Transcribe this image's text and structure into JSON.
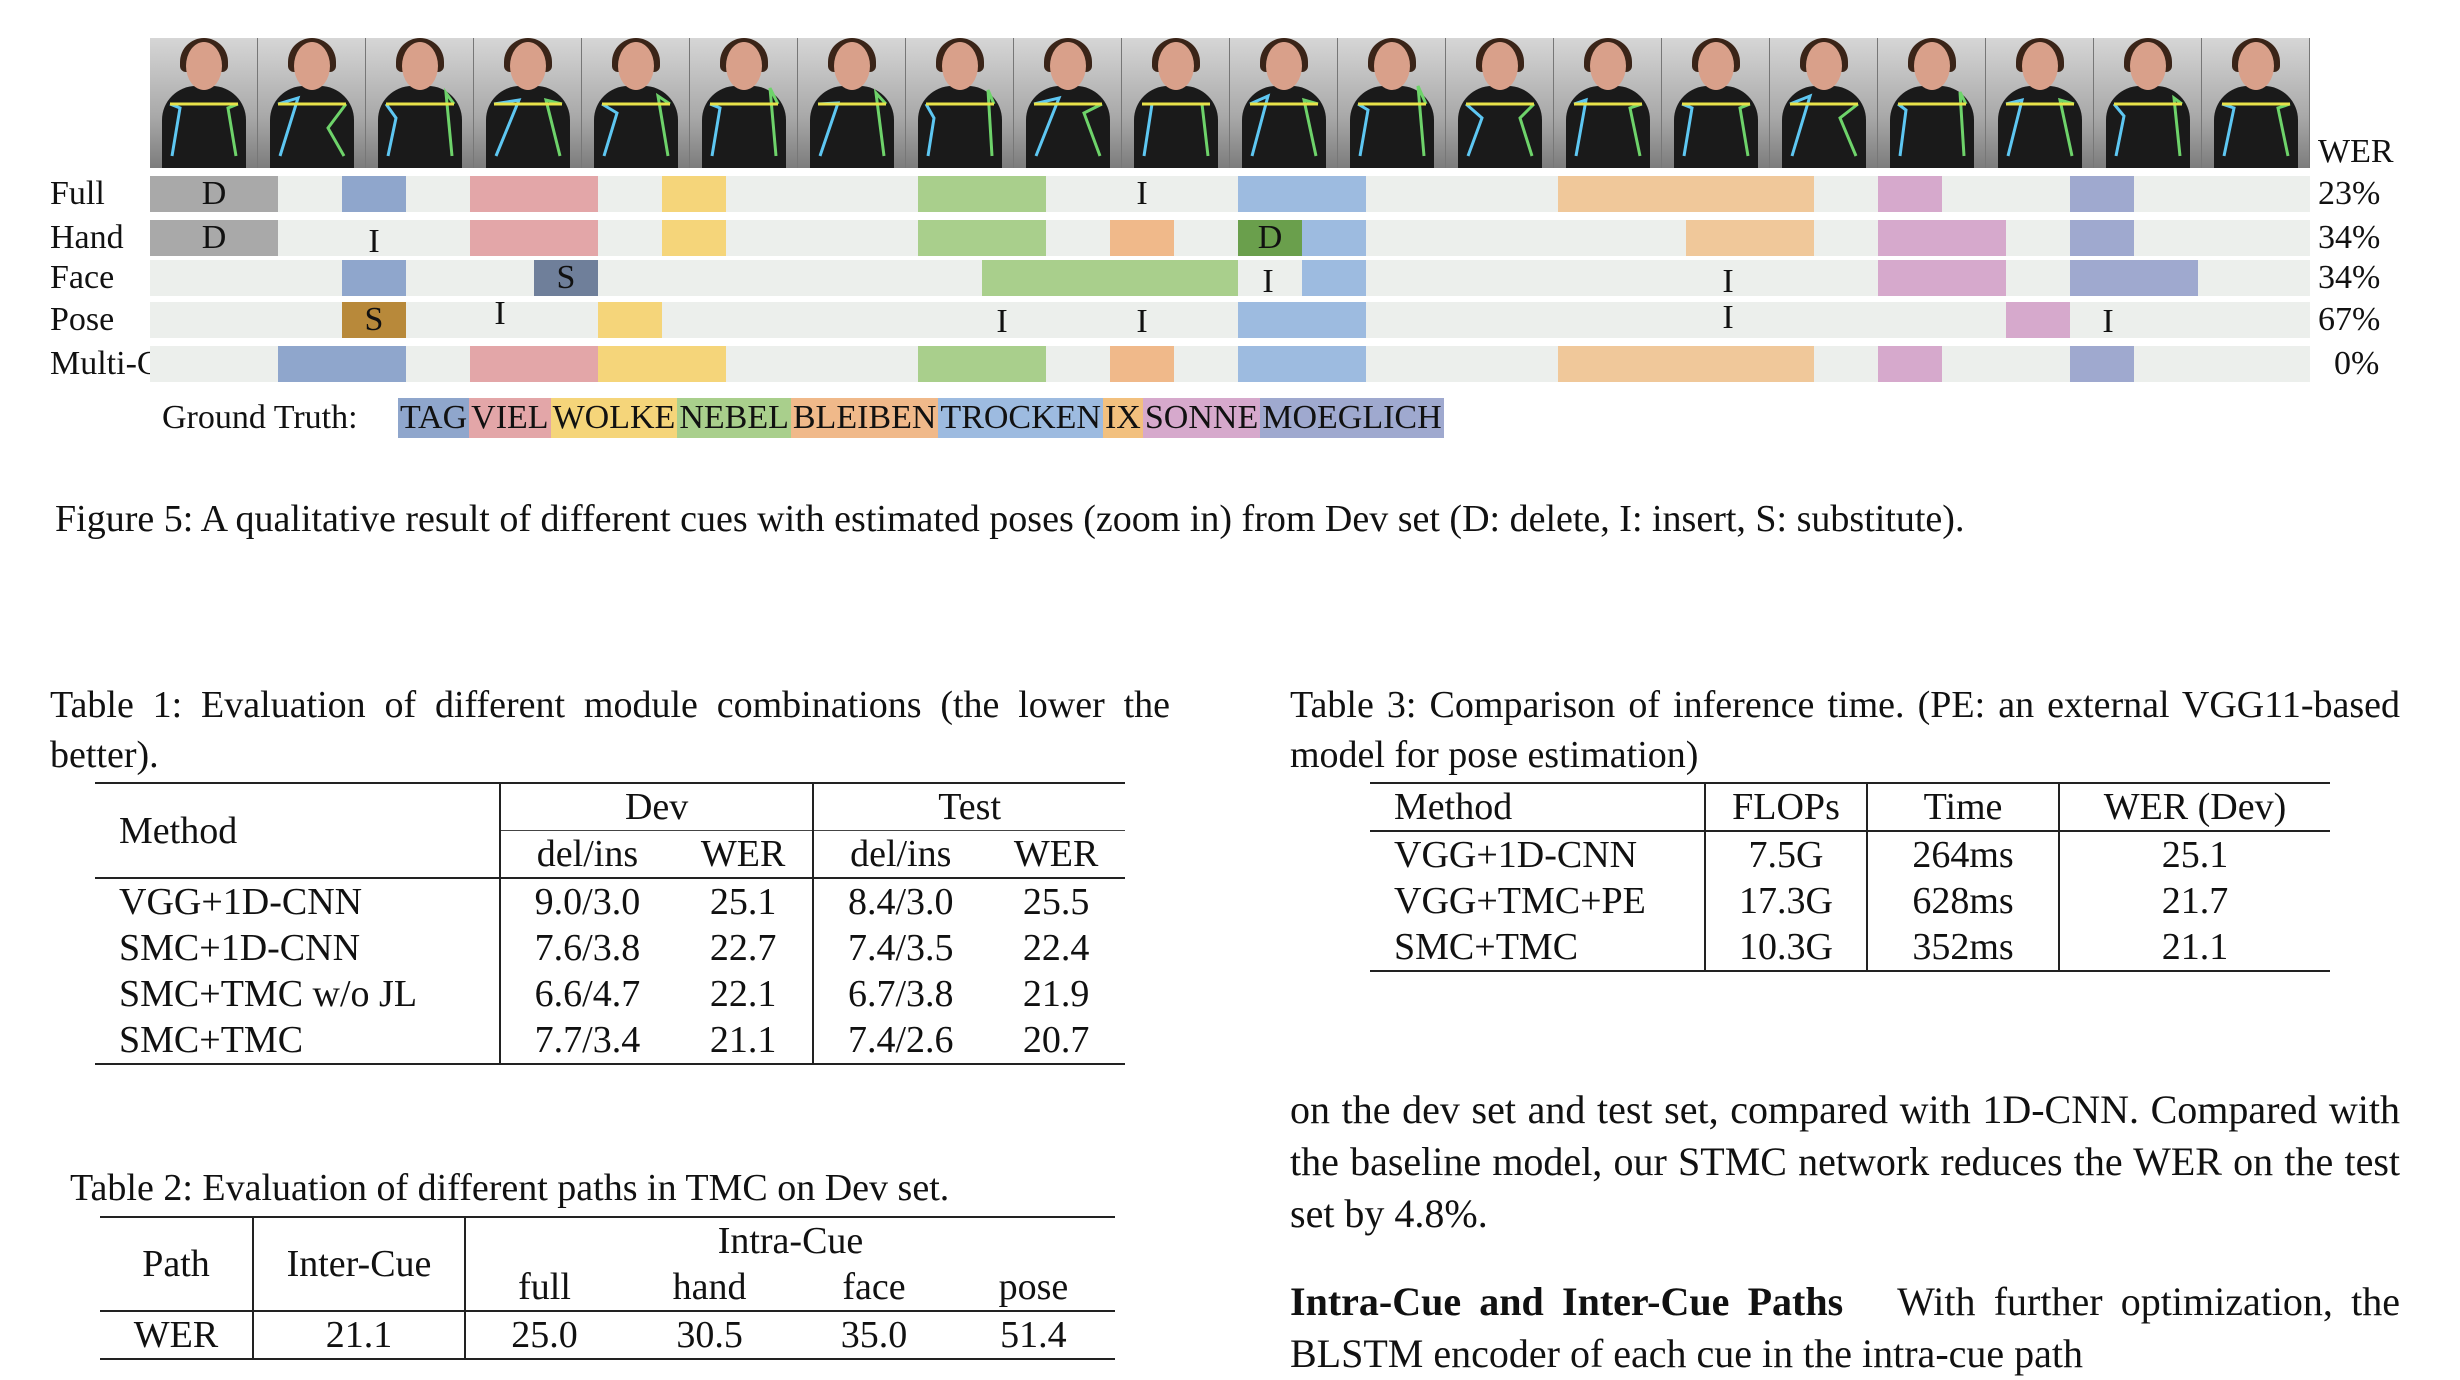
{
  "figure": {
    "wer_header": "WER",
    "rows": [
      {
        "label": "Full",
        "wer": "23%",
        "marks": [
          "D",
          "I"
        ]
      },
      {
        "label": "Hand",
        "wer": "34%",
        "marks": [
          "D",
          "I",
          "D"
        ]
      },
      {
        "label": "Face",
        "wer": "34%",
        "marks": [
          "S",
          "I",
          "I"
        ]
      },
      {
        "label": "Pose",
        "wer": "67%",
        "marks": [
          "S",
          "I",
          "I",
          "I",
          "I",
          "I"
        ]
      },
      {
        "label": "Multi-Cue",
        "wer": "0%",
        "marks": []
      }
    ],
    "ground_truth_label": "Ground Truth:",
    "ground_truth": [
      "TAG",
      "VIEL",
      "WOLKE",
      "NEBEL",
      "BLEIBEN",
      "TROCKEN",
      "IX",
      "SONNE",
      "MOEGLICH"
    ],
    "gloss_colors": {
      "TAG": "#8fa6cc",
      "VIEL": "#e3a6a8",
      "WOLKE": "#f5d57a",
      "NEBEL": "#a9cf8c",
      "BLEIBEN": "#f0b98a",
      "TROCKEN": "#9dbbe0",
      "IX": "#f2c07e",
      "SONNE": "#d6a9cc",
      "MOEGLICH": "#9fa9cf"
    },
    "caption": "Figure 5: A qualitative result of different cues with estimated poses (zoom in) from Dev set (D: delete, I: insert, S: substitute)."
  },
  "table1": {
    "caption": "Table 1: Evaluation of different module combinations (the lower the better).",
    "method_header": "Method",
    "dev_header": "Dev",
    "test_header": "Test",
    "sub_headers": [
      "del/ins",
      "WER",
      "del/ins",
      "WER"
    ],
    "rows": [
      [
        "VGG+1D-CNN",
        "9.0/3.0",
        "25.1",
        "8.4/3.0",
        "25.5"
      ],
      [
        "SMC+1D-CNN",
        "7.6/3.8",
        "22.7",
        "7.4/3.5",
        "22.4"
      ],
      [
        "SMC+TMC w/o JL",
        "6.6/4.7",
        "22.1",
        "6.7/3.8",
        "21.9"
      ],
      [
        "SMC+TMC",
        "7.7/3.4",
        "21.1",
        "7.4/2.6",
        "20.7"
      ]
    ]
  },
  "table2": {
    "caption": "Table 2: Evaluation of different paths in TMC on Dev set.",
    "path_header": "Path",
    "inter_header": "Inter-Cue",
    "intra_header": "Intra-Cue",
    "sub_headers": [
      "full",
      "hand",
      "face",
      "pose"
    ],
    "row": [
      "WER",
      "21.1",
      "25.0",
      "30.5",
      "35.0",
      "51.4"
    ]
  },
  "table3": {
    "caption": "Table 3: Comparison of inference time. (PE: an external VGG11-based model for pose estimation)",
    "headers": [
      "Method",
      "FLOPs",
      "Time",
      "WER (Dev)"
    ],
    "rows": [
      [
        "VGG+1D-CNN",
        "7.5G",
        "264ms",
        "25.1"
      ],
      [
        "VGG+TMC+PE",
        "17.3G",
        "628ms",
        "21.7"
      ],
      [
        "SMC+TMC",
        "10.3G",
        "352ms",
        "21.1"
      ]
    ]
  },
  "text": {
    "para1": "on the dev set and test set, compared with 1D-CNN. Compared with the baseline model, our STMC network reduces the WER on the test set by 4.8%.",
    "heading": "Intra-Cue and Inter-Cue Paths",
    "para2": "With further optimization, the BLSTM encoder of each cue in the intra-cue path"
  }
}
